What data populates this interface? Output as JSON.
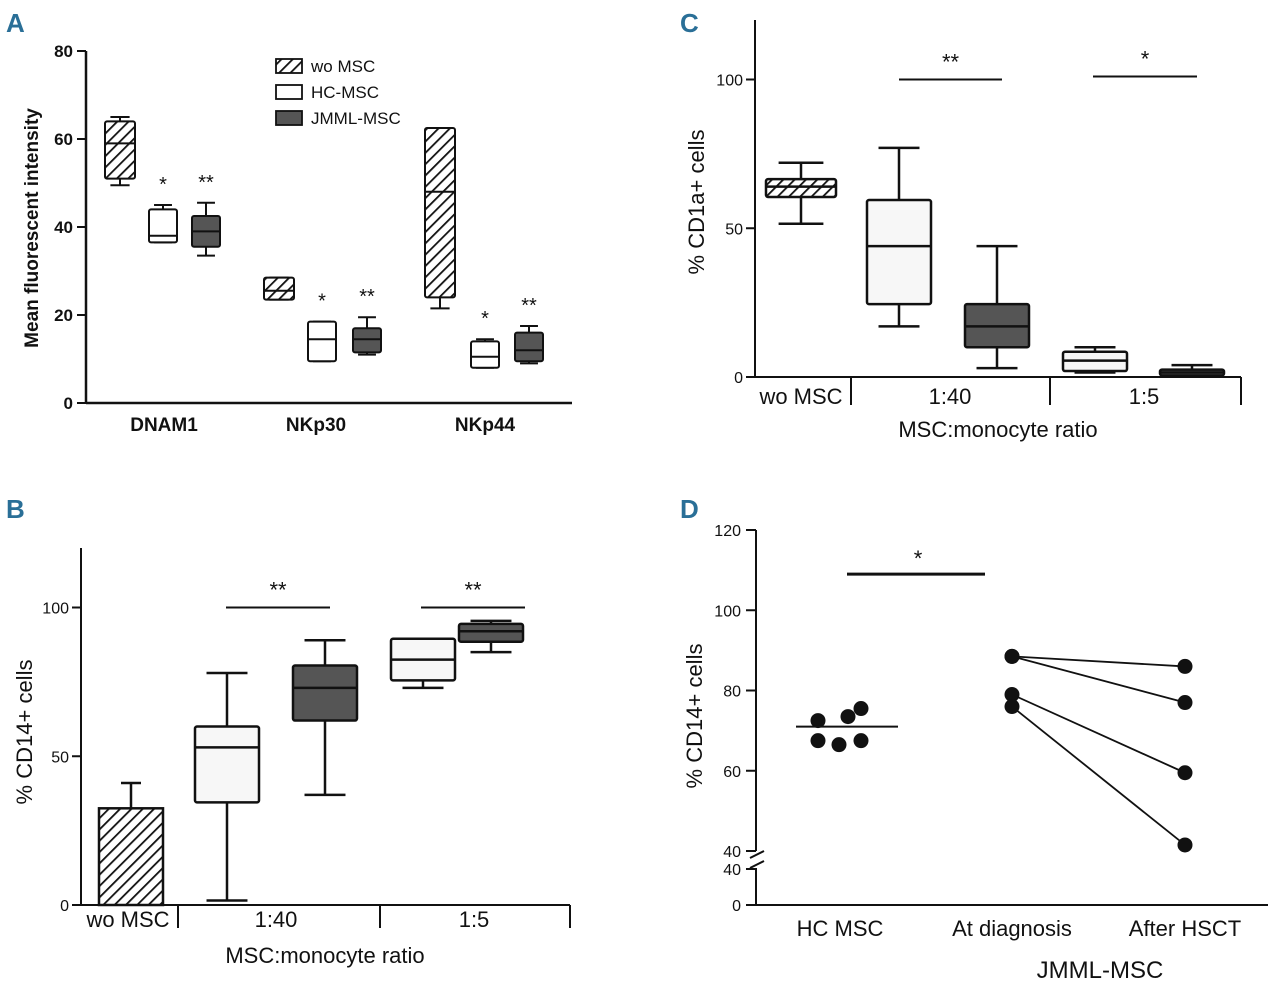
{
  "colors": {
    "ink": "#111111",
    "dark_fill": "#555555",
    "light_fill": "#f7f7f7",
    "letter": "#2a6f97"
  },
  "chart_data": [
    {
      "id": "A",
      "type": "box",
      "panel_label": "A",
      "ylabel": "Mean fluorescent intensity",
      "ylim": [
        0,
        80
      ],
      "yticks": [
        0,
        20,
        40,
        60,
        80
      ],
      "categories": [
        "DNAM1",
        "NKp30",
        "NKp44"
      ],
      "legend": [
        {
          "label": "wo MSC",
          "style": "hatched"
        },
        {
          "label": "HC-MSC",
          "style": "white"
        },
        {
          "label": "JMML-MSC",
          "style": "dark"
        }
      ],
      "boxes": [
        {
          "group": "DNAM1",
          "series": "wo MSC",
          "min": 49.5,
          "q1": 51,
          "median": 59,
          "q3": 64,
          "max": 65,
          "sig": ""
        },
        {
          "group": "DNAM1",
          "series": "HC-MSC",
          "min": 36.5,
          "q1": 36.5,
          "median": 38,
          "q3": 44,
          "max": 45,
          "sig": "*"
        },
        {
          "group": "DNAM1",
          "series": "JMML-MSC",
          "min": 33.5,
          "q1": 35.5,
          "median": 39,
          "q3": 42.5,
          "max": 45.5,
          "sig": "**"
        },
        {
          "group": "NKp30",
          "series": "wo MSC",
          "min": 23.5,
          "q1": 23.5,
          "median": 25.5,
          "q3": 28.5,
          "max": 28.5,
          "sig": ""
        },
        {
          "group": "NKp30",
          "series": "HC-MSC",
          "min": 9.5,
          "q1": 9.5,
          "median": 14.5,
          "q3": 18.5,
          "max": 18.5,
          "sig": "*"
        },
        {
          "group": "NKp30",
          "series": "JMML-MSC",
          "min": 11,
          "q1": 11.5,
          "median": 14.5,
          "q3": 17,
          "max": 19.5,
          "sig": "**"
        },
        {
          "group": "NKp44",
          "series": "wo MSC",
          "min": 21.5,
          "q1": 24,
          "median": 48,
          "q3": 62.5,
          "max": 62.5,
          "sig": ""
        },
        {
          "group": "NKp44",
          "series": "HC-MSC",
          "min": 8,
          "q1": 8,
          "median": 10.5,
          "q3": 14,
          "max": 14.5,
          "sig": "*"
        },
        {
          "group": "NKp44",
          "series": "JMML-MSC",
          "min": 9,
          "q1": 9.5,
          "median": 12,
          "q3": 16,
          "max": 17.5,
          "sig": "**"
        }
      ]
    },
    {
      "id": "B",
      "type": "box",
      "panel_label": "B",
      "ylabel": "% CD14+ cells",
      "xlabel": "MSC:monocyte ratio",
      "ylim": [
        0,
        120
      ],
      "yticks": [
        0,
        50,
        100
      ],
      "groups": [
        "wo MSC",
        "1:40",
        "1:5"
      ],
      "boxes": [
        {
          "group": "wo MSC",
          "style": "hatched",
          "min": 0,
          "q1": 0,
          "median": 0,
          "q3": 32.5,
          "max": 41
        },
        {
          "group": "1:40",
          "style": "light",
          "min": 1.5,
          "q1": 34.5,
          "median": 53,
          "q3": 60,
          "max": 78
        },
        {
          "group": "1:40",
          "style": "dark",
          "min": 37,
          "q1": 62,
          "median": 73,
          "q3": 80.5,
          "max": 89
        },
        {
          "group": "1:5",
          "style": "light",
          "min": 73,
          "q1": 75.5,
          "median": 82.5,
          "q3": 89.5,
          "max": 89.5
        },
        {
          "group": "1:5",
          "style": "dark",
          "min": 85,
          "q1": 88.5,
          "median": 92,
          "q3": 94.5,
          "max": 95.5
        }
      ],
      "significance": [
        {
          "group": "1:40",
          "label": "**",
          "y": 100
        },
        {
          "group": "1:5",
          "label": "**",
          "y": 100
        }
      ]
    },
    {
      "id": "C",
      "type": "box",
      "panel_label": "C",
      "ylabel": "% CD1a+ cells",
      "xlabel": "MSC:monocyte ratio",
      "ylim": [
        0,
        120
      ],
      "yticks": [
        0,
        50,
        100
      ],
      "groups": [
        "wo MSC",
        "1:40",
        "1:5"
      ],
      "boxes": [
        {
          "group": "wo MSC",
          "style": "hatched",
          "min": 51.5,
          "q1": 60.5,
          "median": 64,
          "q3": 66.5,
          "max": 72
        },
        {
          "group": "1:40",
          "style": "light",
          "min": 17,
          "q1": 24.5,
          "median": 44,
          "q3": 59.5,
          "max": 77
        },
        {
          "group": "1:40",
          "style": "dark",
          "min": 3,
          "q1": 10,
          "median": 17,
          "q3": 24.5,
          "max": 44
        },
        {
          "group": "1:5",
          "style": "light",
          "min": 1.5,
          "q1": 2,
          "median": 5.5,
          "q3": 8.5,
          "max": 10
        },
        {
          "group": "1:5",
          "style": "dark",
          "min": 0.5,
          "q1": 0.5,
          "median": 1.5,
          "q3": 2.5,
          "max": 4
        }
      ],
      "significance": [
        {
          "group": "1:40",
          "label": "**",
          "y": 100
        },
        {
          "group": "1:5",
          "label": "*",
          "y": 101
        }
      ]
    },
    {
      "id": "D",
      "type": "scatter",
      "panel_label": "D",
      "ylabel": "% CD14+ cells",
      "xlabel": "JMML-MSC",
      "ylim": [
        40,
        120
      ],
      "yticks": [
        40,
        60,
        80,
        100,
        120
      ],
      "lower_tick": "40",
      "zero_tick": "0",
      "categories": [
        "HC MSC",
        "At diagnosis",
        "After HSCT"
      ],
      "hc_points": [
        72.5,
        73.5,
        67.5,
        66.5,
        67.5,
        75.5
      ],
      "hc_median": 71,
      "paired": [
        {
          "at_diagnosis": 88.5,
          "after_hsct": 86
        },
        {
          "at_diagnosis": 88.5,
          "after_hsct": 77
        },
        {
          "at_diagnosis": 79,
          "after_hsct": 59.5
        },
        {
          "at_diagnosis": 76,
          "after_hsct": 41.5
        }
      ],
      "significance": [
        {
          "label": "*",
          "from": "HC MSC",
          "to": "At diagnosis",
          "y": 109
        }
      ]
    }
  ]
}
